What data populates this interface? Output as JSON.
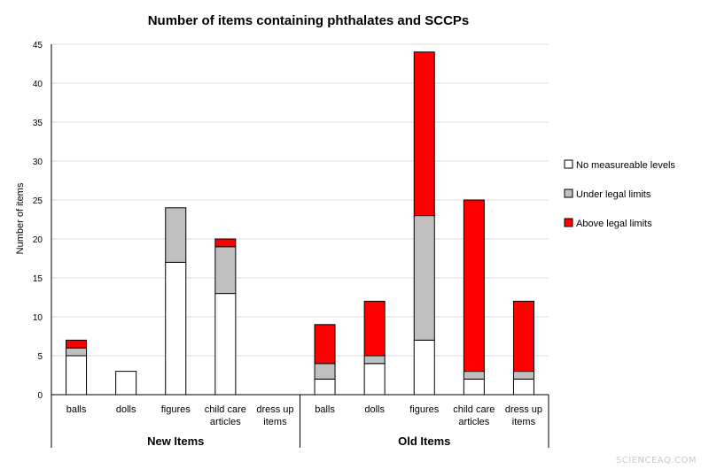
{
  "chart_data": {
    "type": "bar",
    "stacked": true,
    "title": "Number of items containing phthalates and SCCPs",
    "xlabel": "",
    "ylabel": "Number of items",
    "ylim": [
      0,
      45
    ],
    "yticks": [
      0,
      5,
      10,
      15,
      20,
      25,
      30,
      35,
      40,
      45
    ],
    "grid": true,
    "legend_position": "right",
    "categories": [
      "balls",
      "dolls",
      "figures",
      "child care articles",
      "dress up items",
      "balls",
      "dolls",
      "figures",
      "child care articles",
      "dress up items"
    ],
    "category_labels": [
      [
        "balls"
      ],
      [
        "dolls"
      ],
      [
        "figures"
      ],
      [
        "child care",
        "articles"
      ],
      [
        "dress up",
        "items"
      ],
      [
        "balls"
      ],
      [
        "dolls"
      ],
      [
        "figures"
      ],
      [
        "child care",
        "articles"
      ],
      [
        "dress up",
        "items"
      ]
    ],
    "groups": [
      {
        "label": "New Items",
        "categories": 5
      },
      {
        "label": "Old Items",
        "categories": 5
      }
    ],
    "series": [
      {
        "name": "No measureable levels",
        "color": "#ffffff",
        "values": [
          5,
          3,
          17,
          13,
          0,
          2,
          4,
          7,
          2,
          2
        ]
      },
      {
        "name": "Under legal limits",
        "color": "#c0c0c0",
        "values": [
          1,
          0,
          7,
          6,
          0,
          2,
          1,
          16,
          1,
          1
        ]
      },
      {
        "name": "Above legal limits",
        "color": "#ff0000",
        "values": [
          1,
          0,
          0,
          1,
          0,
          5,
          7,
          21,
          22,
          9
        ]
      }
    ]
  },
  "watermark": "SCIENCEAQ.COM"
}
